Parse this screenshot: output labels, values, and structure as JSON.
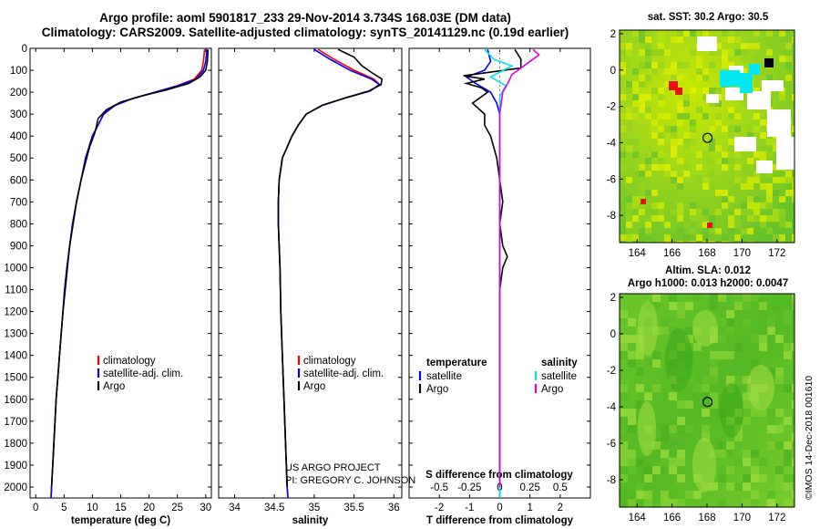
{
  "header": {
    "line1": "Argo profile: aoml 5901817_233 29-Nov-2014 3.734S 168.03E (DM data)",
    "line2": "Climatology: CARS2009. Satellite-adjusted climatology: synTS_20141129.nc (0.19d earlier)"
  },
  "credit": "©IMOS 14-Dec-2018 001610",
  "chart_data": [
    {
      "type": "line",
      "panel": "temperature",
      "xlabel": "temperature (deg C)",
      "ylabel": "",
      "xlim": [
        -1,
        31
      ],
      "ylim": [
        2050,
        0
      ],
      "x_ticks": [
        0,
        5,
        10,
        15,
        20,
        25,
        30
      ],
      "y_ticks": [
        0,
        100,
        200,
        300,
        400,
        500,
        600,
        700,
        800,
        900,
        1000,
        1100,
        1200,
        1300,
        1400,
        1500,
        1600,
        1700,
        1800,
        1900,
        2000
      ],
      "legend": [
        "climatology",
        "satellite-adj. clim.",
        "Argo"
      ],
      "legend_placement": "lower-center",
      "series": [
        {
          "name": "climatology",
          "color": "#ff0000",
          "points": [
            [
              29.8,
              5
            ],
            [
              29.6,
              60
            ],
            [
              29.3,
              100
            ],
            [
              28.0,
              140
            ],
            [
              25.0,
              170
            ],
            [
              21.0,
              200
            ],
            [
              17.0,
              230
            ],
            [
              14.0,
              260
            ],
            [
              12.0,
              300
            ],
            [
              11.0,
              350
            ],
            [
              10.0,
              400
            ],
            [
              9.4,
              450
            ],
            [
              8.8,
              500
            ],
            [
              8.0,
              600
            ],
            [
              7.2,
              700
            ],
            [
              6.5,
              800
            ],
            [
              6.0,
              900
            ],
            [
              5.5,
              1000
            ],
            [
              5.1,
              1100
            ],
            [
              4.8,
              1200
            ],
            [
              4.5,
              1300
            ],
            [
              4.2,
              1400
            ],
            [
              3.9,
              1500
            ],
            [
              3.6,
              1600
            ],
            [
              3.4,
              1700
            ],
            [
              3.2,
              1800
            ],
            [
              3.0,
              1900
            ],
            [
              2.8,
              2000
            ],
            [
              2.7,
              2050
            ]
          ]
        },
        {
          "name": "satellite-adj. clim.",
          "color": "#0000ff",
          "points": [
            [
              30.2,
              5
            ],
            [
              30.0,
              60
            ],
            [
              29.6,
              100
            ],
            [
              28.3,
              140
            ],
            [
              25.2,
              170
            ],
            [
              21.0,
              200
            ],
            [
              17.0,
              230
            ],
            [
              14.0,
              260
            ],
            [
              12.0,
              300
            ],
            [
              11.0,
              350
            ],
            [
              10.0,
              400
            ],
            [
              9.4,
              450
            ],
            [
              8.8,
              500
            ],
            [
              8.0,
              600
            ],
            [
              7.2,
              700
            ],
            [
              6.5,
              800
            ],
            [
              6.0,
              900
            ],
            [
              5.5,
              1000
            ],
            [
              5.1,
              1100
            ],
            [
              4.8,
              1200
            ],
            [
              4.5,
              1300
            ],
            [
              4.2,
              1400
            ],
            [
              3.9,
              1500
            ],
            [
              3.6,
              1600
            ],
            [
              3.4,
              1700
            ],
            [
              3.2,
              1800
            ],
            [
              3.0,
              1900
            ],
            [
              2.8,
              2000
            ],
            [
              2.7,
              2050
            ]
          ]
        },
        {
          "name": "Argo",
          "color": "#000000",
          "points": [
            [
              30.4,
              5
            ],
            [
              30.3,
              60
            ],
            [
              30.0,
              100
            ],
            [
              29.0,
              130
            ],
            [
              27.0,
              160
            ],
            [
              23.0,
              190
            ],
            [
              19.0,
              215
            ],
            [
              15.0,
              245
            ],
            [
              12.5,
              280
            ],
            [
              11.0,
              320
            ],
            [
              10.5,
              380
            ],
            [
              9.5,
              450
            ],
            [
              8.8,
              520
            ],
            [
              8.0,
              600
            ],
            [
              7.2,
              700
            ],
            [
              6.6,
              800
            ],
            [
              6.0,
              900
            ],
            [
              5.6,
              1000
            ],
            [
              5.2,
              1100
            ],
            [
              4.8,
              1200
            ],
            [
              4.5,
              1300
            ],
            [
              4.2,
              1400
            ],
            [
              3.9,
              1500
            ],
            [
              3.6,
              1600
            ],
            [
              3.4,
              1700
            ],
            [
              3.2,
              1800
            ],
            [
              3.0,
              1900
            ],
            [
              2.8,
              2000
            ]
          ]
        }
      ]
    },
    {
      "type": "line",
      "panel": "salinity",
      "xlabel": "salinity",
      "xlim": [
        33.8,
        36.1
      ],
      "ylim": [
        2050,
        0
      ],
      "x_ticks": [
        34,
        34.5,
        35,
        35.5,
        36
      ],
      "legend": [
        "climatology",
        "satellite-adj. clim.",
        "Argo"
      ],
      "legend_placement": "lower-right",
      "series": [
        {
          "name": "climatology",
          "color": "#ff0000",
          "points": [
            [
              35.05,
              5
            ],
            [
              35.25,
              50
            ],
            [
              35.5,
              100
            ],
            [
              35.75,
              140
            ],
            [
              35.82,
              165
            ],
            [
              35.7,
              195
            ],
            [
              35.4,
              225
            ],
            [
              35.1,
              260
            ],
            [
              34.9,
              300
            ],
            [
              34.8,
              350
            ],
            [
              34.72,
              400
            ],
            [
              34.66,
              450
            ],
            [
              34.6,
              500
            ],
            [
              34.56,
              600
            ],
            [
              34.55,
              700
            ],
            [
              34.55,
              800
            ],
            [
              34.56,
              900
            ],
            [
              34.57,
              1000
            ],
            [
              34.58,
              1200
            ],
            [
              34.6,
              1400
            ],
            [
              34.62,
              1600
            ],
            [
              34.64,
              1800
            ],
            [
              34.66,
              2000
            ],
            [
              34.67,
              2050
            ]
          ]
        },
        {
          "name": "satellite-adj. clim.",
          "color": "#0000ff",
          "points": [
            [
              35.0,
              5
            ],
            [
              35.2,
              50
            ],
            [
              35.45,
              100
            ],
            [
              35.72,
              140
            ],
            [
              35.82,
              165
            ],
            [
              35.7,
              195
            ],
            [
              35.4,
              225
            ],
            [
              35.1,
              260
            ],
            [
              34.9,
              300
            ],
            [
              34.8,
              350
            ],
            [
              34.72,
              400
            ],
            [
              34.66,
              450
            ],
            [
              34.6,
              500
            ],
            [
              34.56,
              600
            ],
            [
              34.55,
              700
            ],
            [
              34.55,
              800
            ],
            [
              34.56,
              900
            ],
            [
              34.57,
              1000
            ],
            [
              34.58,
              1200
            ],
            [
              34.6,
              1400
            ],
            [
              34.62,
              1600
            ],
            [
              34.64,
              1800
            ],
            [
              34.66,
              2000
            ],
            [
              34.67,
              2050
            ]
          ]
        },
        {
          "name": "Argo",
          "color": "#000000",
          "points": [
            [
              35.3,
              5
            ],
            [
              35.5,
              40
            ],
            [
              35.6,
              80
            ],
            [
              35.72,
              110
            ],
            [
              35.85,
              140
            ],
            [
              35.84,
              165
            ],
            [
              35.68,
              195
            ],
            [
              35.4,
              225
            ],
            [
              35.1,
              260
            ],
            [
              34.9,
              300
            ],
            [
              34.8,
              350
            ],
            [
              34.72,
              400
            ],
            [
              34.66,
              450
            ],
            [
              34.6,
              500
            ],
            [
              34.56,
              600
            ],
            [
              34.55,
              700
            ],
            [
              34.55,
              800
            ],
            [
              34.56,
              900
            ],
            [
              34.57,
              1000
            ],
            [
              34.58,
              1200
            ],
            [
              34.6,
              1400
            ],
            [
              34.62,
              1600
            ],
            [
              34.64,
              1800
            ],
            [
              34.66,
              2000
            ]
          ]
        }
      ],
      "annotation": [
        "US ARGO PROJECT",
        "PI: GREGORY C. JOHNSON"
      ]
    },
    {
      "type": "line",
      "panel": "difference",
      "xlabel": "T difference from climatology",
      "top_xlabel": "S difference from climatology",
      "xlim": [
        -3,
        3
      ],
      "ylim": [
        2050,
        0
      ],
      "x_ticks": [
        -2,
        -1,
        0,
        1,
        2
      ],
      "top_x_ticks": [
        "-0.5",
        "-0.25",
        "0",
        "0.25",
        "0.5"
      ],
      "top_x_tick_values": [
        -2,
        -1,
        0,
        1,
        2
      ],
      "legend_left_title": "temperature",
      "legend_right_title": "salinity",
      "legend_left": [
        "satellite",
        "Argo"
      ],
      "legend_right": [
        "satellite",
        "Argo"
      ],
      "series": [
        {
          "name": "temperature satellite",
          "color": "#0000ff",
          "points": [
            [
              -0.4,
              5
            ],
            [
              -0.3,
              60
            ],
            [
              -0.5,
              100
            ],
            [
              -1.1,
              130
            ],
            [
              -0.8,
              160
            ],
            [
              -0.3,
              200
            ],
            [
              -0.1,
              250
            ],
            [
              0,
              300
            ],
            [
              0,
              500
            ],
            [
              0,
              1000
            ],
            [
              0,
              1500
            ],
            [
              0,
              2050
            ]
          ]
        },
        {
          "name": "temperature Argo",
          "color": "#000000",
          "points": [
            [
              0.5,
              5
            ],
            [
              0.7,
              50
            ],
            [
              0.7,
              90
            ],
            [
              -1.2,
              125
            ],
            [
              -0.5,
              140
            ],
            [
              -1.1,
              160
            ],
            [
              -0.6,
              180
            ],
            [
              -0.4,
              200
            ],
            [
              -0.9,
              250
            ],
            [
              -0.5,
              300
            ],
            [
              -0.5,
              350
            ],
            [
              -0.3,
              400
            ],
            [
              -0.1,
              500
            ],
            [
              0,
              600
            ],
            [
              0.1,
              700
            ],
            [
              0,
              800
            ],
            [
              0.1,
              900
            ],
            [
              0.25,
              950
            ],
            [
              0.1,
              1000
            ],
            [
              0,
              1100
            ],
            [
              0,
              1200
            ],
            [
              0,
              1300
            ],
            [
              0,
              1400
            ],
            [
              0,
              1500
            ],
            [
              0,
              1600
            ],
            [
              0,
              1700
            ],
            [
              0,
              1800
            ],
            [
              0,
              1900
            ],
            [
              0,
              2000
            ]
          ]
        },
        {
          "name": "salinity satellite",
          "color": "#00e5e5",
          "points": [
            [
              -0.5,
              5
            ],
            [
              -0.2,
              50
            ],
            [
              0.4,
              80
            ],
            [
              -0.3,
              130
            ],
            [
              0.2,
              170
            ],
            [
              0,
              220
            ],
            [
              0,
              300
            ],
            [
              0,
              500
            ],
            [
              0,
              1000
            ],
            [
              0,
              1500
            ],
            [
              0,
              2050
            ]
          ]
        },
        {
          "name": "salinity Argo",
          "color": "#e000e0",
          "points": [
            [
              1.1,
              5
            ],
            [
              1.3,
              30
            ],
            [
              0.8,
              80
            ],
            [
              0.4,
              120
            ],
            [
              0.3,
              150
            ],
            [
              0.1,
              200
            ],
            [
              0,
              300
            ],
            [
              0,
              500
            ],
            [
              0,
              1000
            ],
            [
              0,
              1500
            ],
            [
              0,
              2000
            ]
          ]
        }
      ]
    },
    {
      "type": "heatmap",
      "panel": "map-sst",
      "title": "sat. SST: 30.2 Argo: 30.5",
      "xlim": [
        163,
        173
      ],
      "ylim": [
        -9.5,
        2.2
      ],
      "x_ticks": [
        164,
        166,
        168,
        170,
        172
      ],
      "y_ticks": [
        2,
        0,
        -2,
        -4,
        -6,
        -8
      ],
      "profile_marker": [
        168.03,
        -3.734
      ]
    },
    {
      "type": "heatmap",
      "panel": "map-sla",
      "title": "Altim. SLA: 0.012",
      "subtitle": "Argo h1000: 0.013 h2000: 0.0047",
      "xlim": [
        163,
        173
      ],
      "ylim": [
        -9.5,
        2.2
      ],
      "x_ticks": [
        164,
        166,
        168,
        170,
        172
      ],
      "y_ticks": [
        2,
        0,
        -2,
        -4,
        -6,
        -8
      ],
      "profile_marker": [
        168.03,
        -3.734
      ]
    }
  ]
}
